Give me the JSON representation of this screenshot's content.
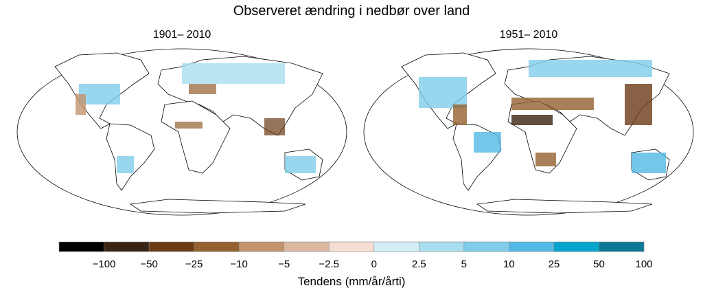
{
  "title": "Observeret ændring i nedbør over land",
  "panels": [
    {
      "title": "1901– 2010"
    },
    {
      "title": "1951– 2010"
    }
  ],
  "colorbar": {
    "label": "Tendens (mm/år/årti)",
    "colors": [
      "#000000",
      "#3a2413",
      "#6b3b16",
      "#94602f",
      "#c2936c",
      "#dbb9a0",
      "#f5ddd3",
      "#d3eef5",
      "#a8dff0",
      "#80cdea",
      "#52b9e4",
      "#05a5cd",
      "#0b7896"
    ],
    "ticks": [
      {
        "value": -100,
        "label": "−100"
      },
      {
        "value": -50,
        "label": "−50"
      },
      {
        "value": -25,
        "label": "−25"
      },
      {
        "value": -10,
        "label": "−10"
      },
      {
        "value": -5,
        "label": "−5"
      },
      {
        "value": -2.5,
        "label": "−2.5"
      },
      0,
      2.5,
      5,
      10,
      25,
      50,
      100
    ]
  }
}
